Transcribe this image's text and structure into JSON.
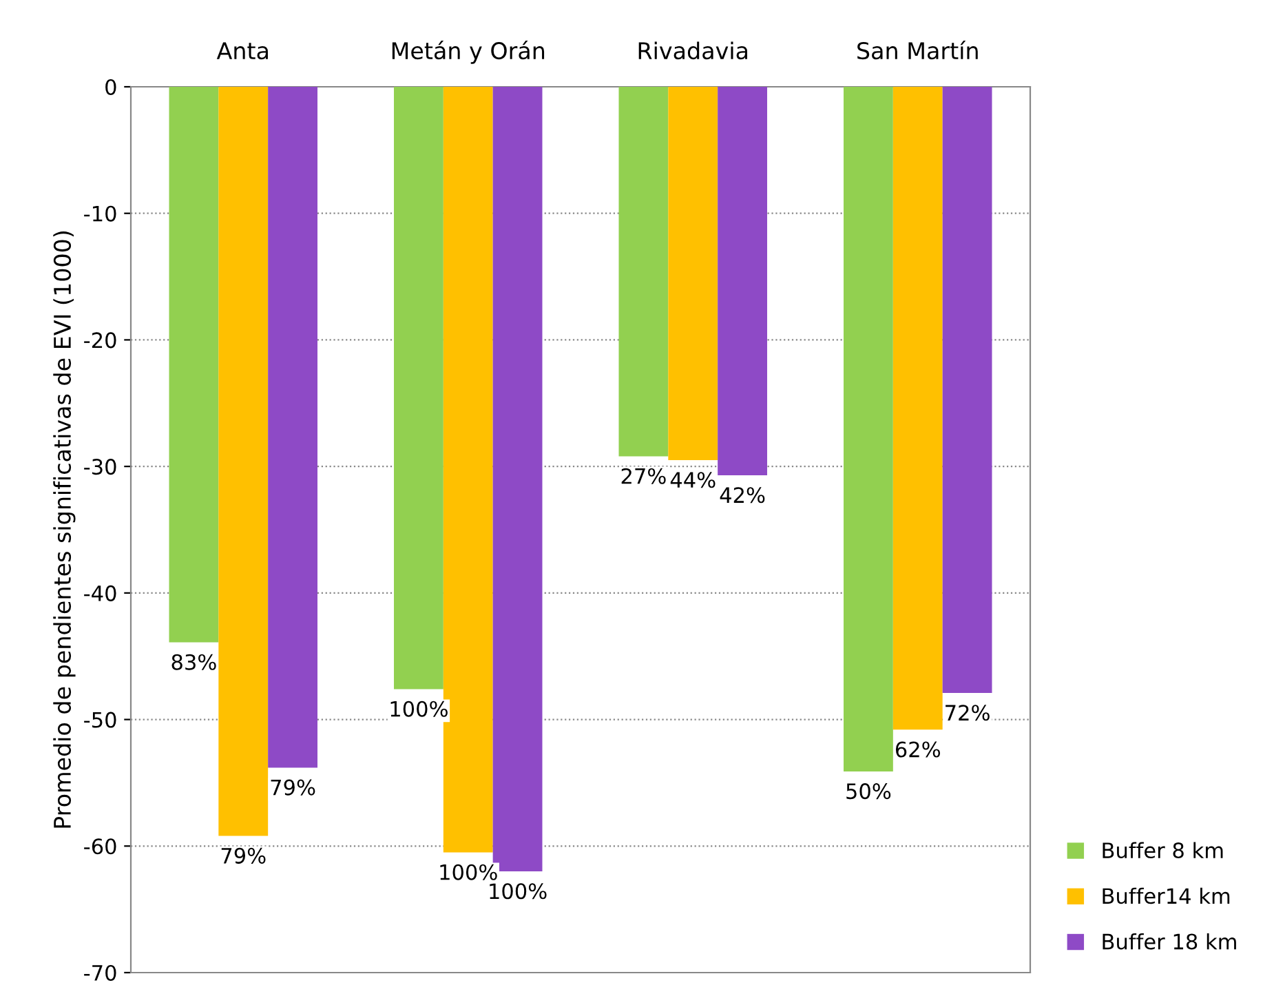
{
  "chart_data": {
    "type": "bar",
    "ylabel": "Promedio de pendientes significativas de EVI (1000)",
    "categories": [
      "Anta",
      "Metán y Orán",
      "Rivadavia",
      "San Martín"
    ],
    "series": [
      {
        "name": "Buffer 8 km",
        "color": "#92d050",
        "values": [
          -43.9,
          -47.6,
          -29.2,
          -54.1
        ]
      },
      {
        "name": "Buffer14 km",
        "color": "#ffc000",
        "values": [
          -59.2,
          -60.5,
          -29.5,
          -50.8
        ]
      },
      {
        "name": "Buffer 18 km",
        "color": "#8e4ac6",
        "values": [
          -53.8,
          -62.0,
          -30.7,
          -47.9
        ]
      }
    ],
    "annotations": [
      "83%",
      "79%",
      "79%",
      "100%",
      "100%",
      "100%",
      "27%",
      "44%",
      "42%",
      "50%",
      "62%",
      "72%"
    ],
    "ylim": [
      -70,
      0
    ],
    "yticks": [
      -70,
      -60,
      -50,
      -40,
      -30,
      -20,
      -10,
      0
    ],
    "grid": "y",
    "legend": "bottom right"
  }
}
